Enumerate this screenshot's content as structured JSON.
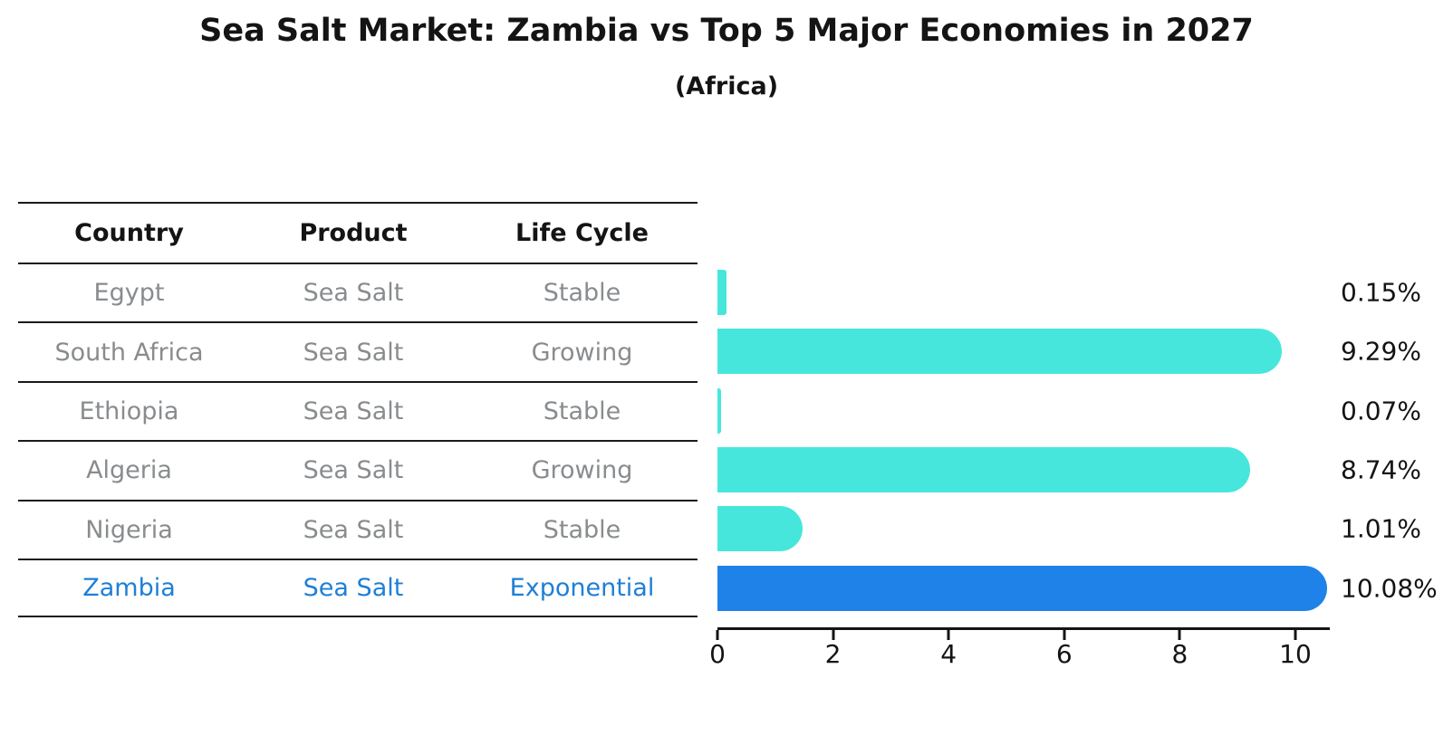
{
  "chart": {
    "title": "Sea Salt Market: Zambia vs Top 5 Major Economies in 2027",
    "subtitle": "(Africa)"
  },
  "table": {
    "columns": [
      "Country",
      "Product",
      "Life Cycle"
    ],
    "rows": [
      {
        "country": "Egypt",
        "product": "Sea Salt",
        "life_cycle": "Stable",
        "highlight": false
      },
      {
        "country": "South Africa",
        "product": "Sea Salt",
        "life_cycle": "Growing",
        "highlight": false
      },
      {
        "country": "Ethiopia",
        "product": "Sea Salt",
        "life_cycle": "Stable",
        "highlight": false
      },
      {
        "country": "Algeria",
        "product": "Sea Salt",
        "life_cycle": "Growing",
        "highlight": false
      },
      {
        "country": "Nigeria",
        "product": "Sea Salt",
        "life_cycle": "Stable",
        "highlight": false
      },
      {
        "country": "Zambia",
        "product": "Sea Salt",
        "life_cycle": "Exponential",
        "highlight": true
      }
    ]
  },
  "chart_data": {
    "type": "bar",
    "orientation": "horizontal",
    "title": "Sea Salt Market: Zambia vs Top 5 Major Economies in 2027",
    "subtitle": "(Africa)",
    "categories": [
      "Egypt",
      "South Africa",
      "Ethiopia",
      "Algeria",
      "Nigeria",
      "Zambia"
    ],
    "values": [
      0.15,
      9.29,
      0.07,
      8.74,
      1.01,
      10.08
    ],
    "value_labels": [
      "0.15%",
      "9.29%",
      "0.07%",
      "8.74%",
      "1.01%",
      "10.08%"
    ],
    "x_ticks": [
      0,
      2,
      4,
      6,
      8,
      10
    ],
    "xlim": [
      0,
      10.6
    ],
    "grid": false,
    "legend": "none",
    "highlight_index": 5,
    "bar_color": "#47e6dc",
    "highlight_color": "#1e82e8",
    "highlight_text_color": "#1e7fd6"
  }
}
